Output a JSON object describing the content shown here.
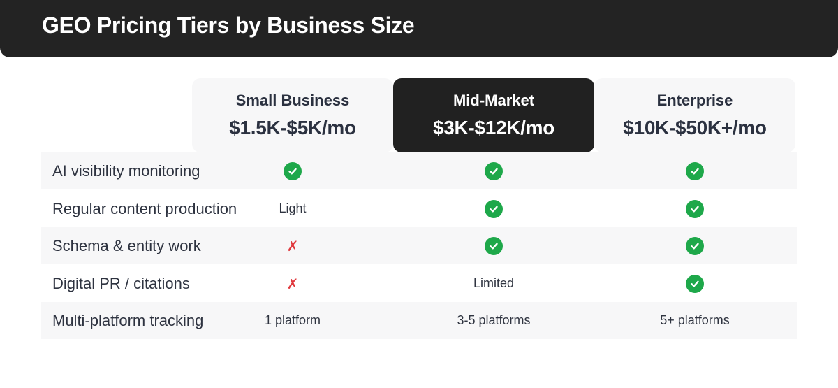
{
  "title": "GEO Pricing Tiers by Business Size",
  "tiers": [
    {
      "name": "Small Business",
      "price": "$1.5K-$5K/mo"
    },
    {
      "name": "Mid-Market",
      "price": "$3K-$12K/mo"
    },
    {
      "name": "Enterprise",
      "price": "$10K-$50K+/mo"
    }
  ],
  "features": [
    {
      "label": "AI visibility monitoring",
      "values": [
        "check",
        "check",
        "check"
      ]
    },
    {
      "label": "Regular content production",
      "values": [
        "Light",
        "check",
        "check"
      ]
    },
    {
      "label": "Schema & entity work",
      "values": [
        "cross",
        "check",
        "check"
      ]
    },
    {
      "label": "Digital PR / citations",
      "values": [
        "cross",
        "Limited",
        "check"
      ]
    },
    {
      "label": "Multi-platform tracking",
      "values": [
        "1 platform",
        "3-5 platforms",
        "5+ platforms"
      ]
    }
  ],
  "icons": {
    "check": "check-circle-icon",
    "cross": "cross-icon"
  },
  "colors": {
    "check": "#1ea84a",
    "cross": "#e0393e",
    "dark": "#212121"
  }
}
